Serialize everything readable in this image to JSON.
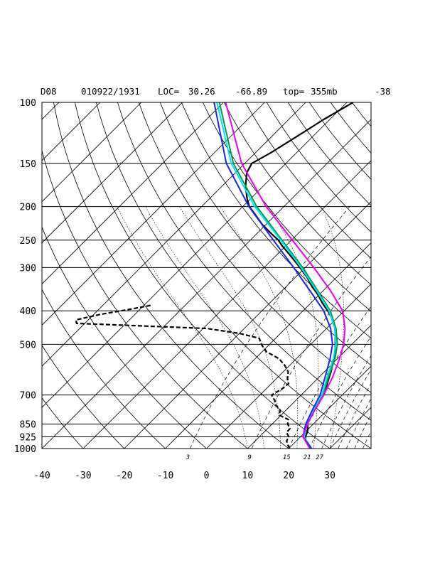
{
  "header": {
    "station": "D08",
    "datetime": "010922/1931",
    "loc_label": "LOC=",
    "lat": "30.26",
    "lon": "-66.89",
    "top_label": "top=",
    "top_value": "355mb",
    "extra": "-38"
  },
  "chart_data": {
    "type": "line",
    "subtype": "skew-T log-P diagram",
    "title": "",
    "xlabel": "",
    "ylabel": "",
    "pressure_ticks": [
      100,
      150,
      200,
      250,
      300,
      400,
      500,
      700,
      850,
      925,
      1000
    ],
    "pressure_labels": [
      "100",
      "150",
      "200",
      "250",
      "300",
      "400",
      "500",
      "700",
      "850",
      "925",
      "1000"
    ],
    "temperature_ticks": [
      -40,
      -30,
      -20,
      -10,
      0,
      10,
      20,
      30
    ],
    "temperature_labels": [
      "-40",
      "-30",
      "-20",
      "-10",
      "0",
      "10",
      "20",
      "30"
    ],
    "ylim": [
      1000,
      100
    ],
    "xlim_at_1000mb": [
      -40,
      40
    ],
    "yscale": "log",
    "mixing_ratio_labels": [
      "3",
      "9",
      "15",
      "21",
      "27"
    ],
    "mixing_ratio_label_temps": [
      -4,
      11,
      20,
      25,
      28
    ],
    "grid": true,
    "legend": "none",
    "colors": {
      "temperature": "#000000",
      "dewpoint": "#000000",
      "member_green": "#009e50",
      "member_cyan": "#00e5f0",
      "member_blue": "#1f22e8",
      "member_magenta": "#ee00ee"
    },
    "series": [
      {
        "id": "temperature",
        "style": "solid-black",
        "points": [
          [
            1000,
            25.3
          ],
          [
            975,
            23.8
          ],
          [
            950,
            22.3
          ],
          [
            925,
            21.2
          ],
          [
            900,
            20.6
          ],
          [
            875,
            19.8
          ],
          [
            850,
            18.6
          ],
          [
            825,
            17.8
          ],
          [
            800,
            17.6
          ],
          [
            775,
            16.8
          ],
          [
            750,
            16.2
          ],
          [
            725,
            15.9
          ],
          [
            700,
            15.5
          ],
          [
            675,
            14.6
          ],
          [
            650,
            13.6
          ],
          [
            625,
            12.6
          ],
          [
            600,
            11.6
          ],
          [
            575,
            10.4
          ],
          [
            550,
            9.1
          ],
          [
            525,
            7.7
          ],
          [
            500,
            6.0
          ],
          [
            475,
            4.1
          ],
          [
            450,
            2.2
          ],
          [
            425,
            -0.5
          ],
          [
            400,
            -4.0
          ],
          [
            380,
            -7.2
          ],
          [
            360,
            -10.2
          ],
          [
            340,
            -13.8
          ],
          [
            320,
            -17.2
          ],
          [
            300,
            -21.3
          ],
          [
            280,
            -25.8
          ],
          [
            260,
            -30.8
          ],
          [
            250,
            -33.2
          ],
          [
            240,
            -36.3
          ],
          [
            225,
            -41.0
          ],
          [
            210,
            -45.3
          ],
          [
            200,
            -48.4
          ],
          [
            190,
            -50.8
          ],
          [
            175,
            -54.2
          ],
          [
            160,
            -57.2
          ],
          [
            150,
            -58.3
          ],
          [
            140,
            -56.3
          ],
          [
            125,
            -53.8
          ],
          [
            112,
            -51.5
          ],
          [
            100,
            -48.5
          ]
        ]
      },
      {
        "id": "dewpoint",
        "style": "dashed-black",
        "points": [
          [
            1000,
            20.2
          ],
          [
            975,
            18.8
          ],
          [
            950,
            17.6
          ],
          [
            925,
            17.2
          ],
          [
            900,
            15.6
          ],
          [
            875,
            15.4
          ],
          [
            850,
            13.8
          ],
          [
            825,
            12.9
          ],
          [
            800,
            9.5
          ],
          [
            775,
            8.6
          ],
          [
            750,
            6.4
          ],
          [
            725,
            4.8
          ],
          [
            700,
            2.8
          ],
          [
            675,
            3.8
          ],
          [
            650,
            4.2
          ],
          [
            625,
            2.5
          ],
          [
            600,
            1.2
          ],
          [
            575,
            -1.2
          ],
          [
            550,
            -4.2
          ],
          [
            525,
            -9.0
          ],
          [
            500,
            -12.0
          ],
          [
            480,
            -14.0
          ],
          [
            465,
            -20.0
          ],
          [
            450,
            -29.0
          ],
          [
            435,
            -62.0
          ],
          [
            425,
            -63.0
          ],
          [
            410,
            -58.5
          ],
          [
            395,
            -52.0
          ],
          [
            385,
            -48.0
          ]
        ]
      },
      {
        "id": "member_green",
        "style": "solid",
        "points": [
          [
            1000,
            25.4
          ],
          [
            925,
            20.8
          ],
          [
            850,
            18.4
          ],
          [
            775,
            16.7
          ],
          [
            700,
            15.3
          ],
          [
            625,
            12.4
          ],
          [
            550,
            9.4
          ],
          [
            500,
            6.5
          ],
          [
            450,
            2.3
          ],
          [
            400,
            -3.4
          ],
          [
            350,
            -11.3
          ],
          [
            300,
            -20.6
          ],
          [
            250,
            -32.3
          ],
          [
            200,
            -46.6
          ],
          [
            150,
            -62.8
          ],
          [
            100,
            -81.0
          ]
        ]
      },
      {
        "id": "member_cyan",
        "style": "solid",
        "points": [
          [
            1000,
            25.6
          ],
          [
            925,
            20.9
          ],
          [
            850,
            18.6
          ],
          [
            775,
            16.6
          ],
          [
            700,
            15.0
          ],
          [
            625,
            12.1
          ],
          [
            550,
            9.0
          ],
          [
            500,
            6.1
          ],
          [
            450,
            2.0
          ],
          [
            400,
            -3.7
          ],
          [
            350,
            -11.6
          ],
          [
            300,
            -21.0
          ],
          [
            250,
            -32.6
          ],
          [
            200,
            -47.1
          ],
          [
            150,
            -63.3
          ],
          [
            100,
            -81.6
          ]
        ]
      },
      {
        "id": "member_blue",
        "style": "solid",
        "points": [
          [
            1000,
            25.5
          ],
          [
            925,
            20.6
          ],
          [
            850,
            18.2
          ],
          [
            775,
            16.4
          ],
          [
            700,
            14.6
          ],
          [
            625,
            11.6
          ],
          [
            550,
            8.2
          ],
          [
            500,
            5.3
          ],
          [
            450,
            1.0
          ],
          [
            400,
            -5.0
          ],
          [
            350,
            -13.2
          ],
          [
            300,
            -22.8
          ],
          [
            250,
            -34.4
          ],
          [
            200,
            -48.5
          ],
          [
            150,
            -64.5
          ],
          [
            100,
            -82.3
          ]
        ]
      },
      {
        "id": "member_magenta",
        "style": "solid",
        "points": [
          [
            1000,
            25.1
          ],
          [
            925,
            20.6
          ],
          [
            850,
            18.6
          ],
          [
            775,
            17.0
          ],
          [
            700,
            15.5
          ],
          [
            625,
            13.4
          ],
          [
            550,
            10.5
          ],
          [
            500,
            8.0
          ],
          [
            450,
            4.5
          ],
          [
            400,
            -0.4
          ],
          [
            350,
            -8.2
          ],
          [
            300,
            -17.9
          ],
          [
            250,
            -29.8
          ],
          [
            200,
            -44.3
          ],
          [
            150,
            -60.8
          ],
          [
            100,
            -79.5
          ]
        ]
      }
    ]
  }
}
